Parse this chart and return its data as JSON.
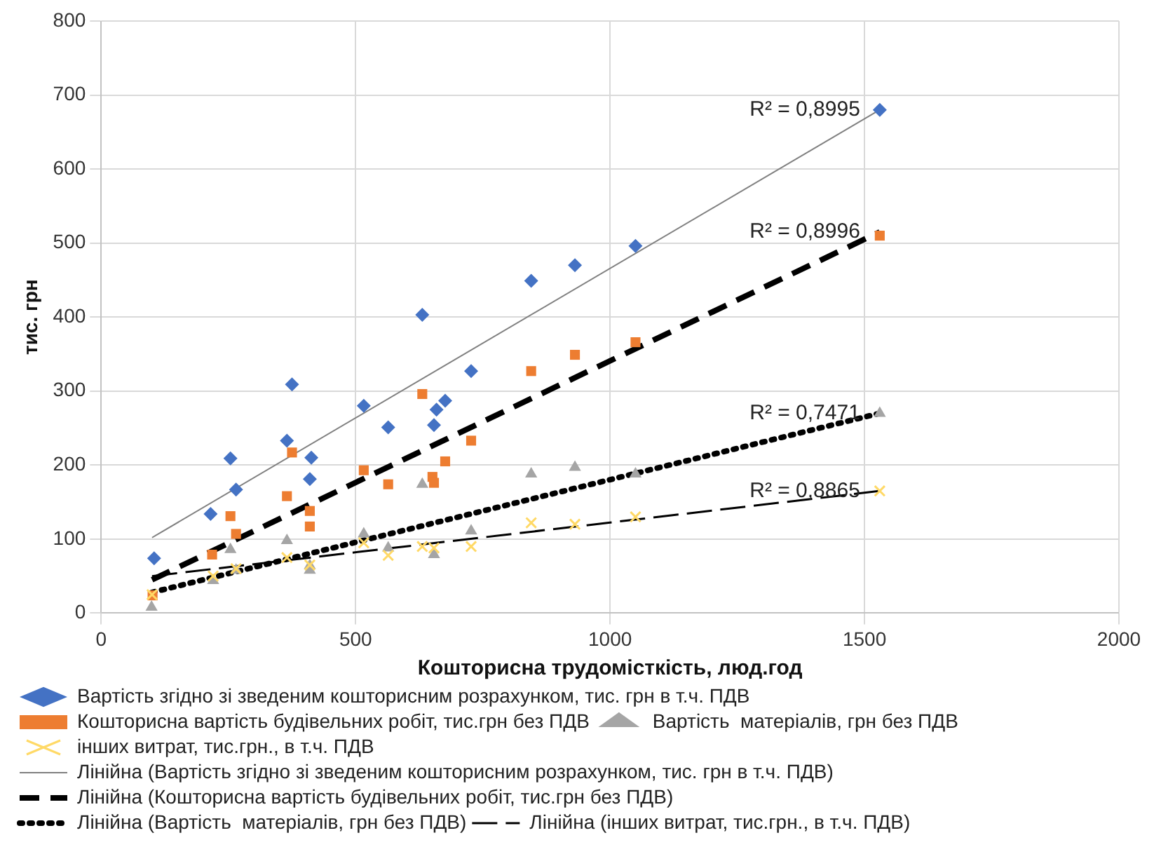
{
  "chart_data": {
    "type": "scatter",
    "xlabel": "Кошторисна трудомісткість, люд.год",
    "ylabel": "тис. грн",
    "xlim": [
      0,
      2000
    ],
    "xticks": [
      0,
      500,
      1000,
      1500,
      2000
    ],
    "ylim": [
      0,
      800
    ],
    "yticks": [
      0,
      100,
      200,
      300,
      400,
      500,
      600,
      700,
      800
    ],
    "grid": true,
    "legend": "bottom",
    "series": [
      {
        "name": "Вартість згідно зі зведеним кошторисним розрахунком, тис. грн в т.ч. ПДВ",
        "marker": "diamond",
        "color": "#4472c4",
        "x": [
          104,
          215,
          254,
          265,
          365,
          375,
          413,
          410,
          516,
          564,
          631,
          654,
          659,
          676,
          727,
          845,
          931,
          1050,
          1530
        ],
        "values": [
          74,
          134,
          209,
          167,
          233,
          309,
          210,
          181,
          280,
          251,
          403,
          254,
          275,
          287,
          327,
          449,
          470,
          496,
          680
        ]
      },
      {
        "name": "Кошторисна вартість будівельних робіт, тис.грн без ПДВ",
        "marker": "square",
        "color": "#ed7d31",
        "x": [
          101,
          218,
          254,
          265,
          365,
          375,
          410,
          410,
          516,
          564,
          631,
          651,
          654,
          676,
          727,
          845,
          931,
          1050,
          1530
        ],
        "values": [
          24,
          79,
          131,
          107,
          158,
          217,
          138,
          117,
          193,
          174,
          296,
          184,
          176,
          205,
          233,
          327,
          349,
          366,
          510
        ]
      },
      {
        "name": "Вартість  матеріалів, грн без ПДВ",
        "marker": "triangle",
        "color": "#a5a5a5",
        "x": [
          99,
          220,
          254,
          265,
          365,
          410,
          410,
          516,
          564,
          631,
          654,
          727,
          845,
          931,
          1050,
          1530
        ],
        "values": [
          8,
          44,
          86,
          58,
          98,
          58,
          64,
          107,
          88,
          174,
          79,
          111,
          188,
          197,
          188,
          270
        ]
      },
      {
        "name": "інших витрат, тис.грн., в т.ч. ПДВ",
        "marker": "cross",
        "color": "#ffd966",
        "x": [
          100,
          220,
          265,
          365,
          410,
          516,
          564,
          631,
          654,
          727,
          845,
          931,
          1050,
          1530
        ],
        "values": [
          25,
          50,
          60,
          75,
          65,
          95,
          78,
          90,
          88,
          90,
          122,
          120,
          130,
          165
        ]
      },
      {
        "name": "Лінійна (Вартість згідно зі зведеним кошторисним розрахунком, тис. грн в т.ч. ПДВ)",
        "type": "line",
        "line_style": "solid",
        "color": "#808080",
        "x": [
          100,
          1530
        ],
        "values": [
          102,
          680
        ]
      },
      {
        "name": "Лінійна (Кошторисна вартість будівельних робіт, тис.грн без ПДВ)",
        "type": "line",
        "line_style": "dashed",
        "color": "#000000",
        "x": [
          100,
          1530
        ],
        "values": [
          45,
          515
        ]
      },
      {
        "name": "Лінійна (Вартість  матеріалів, грн без ПДВ)",
        "type": "line",
        "line_style": "dotted",
        "color": "#000000",
        "x": [
          100,
          1530
        ],
        "values": [
          28,
          270
        ]
      },
      {
        "name": "Лінійна (інших витрат, тис.грн., в т.ч. ПДВ)",
        "type": "line",
        "line_style": "longdash",
        "color": "#000000",
        "x": [
          100,
          1530
        ],
        "values": [
          50,
          165
        ]
      }
    ],
    "annotations": [
      "R² = 0,8995",
      "R² = 0,8996",
      "R² = 0,7471",
      "R² = 0,8865"
    ]
  }
}
